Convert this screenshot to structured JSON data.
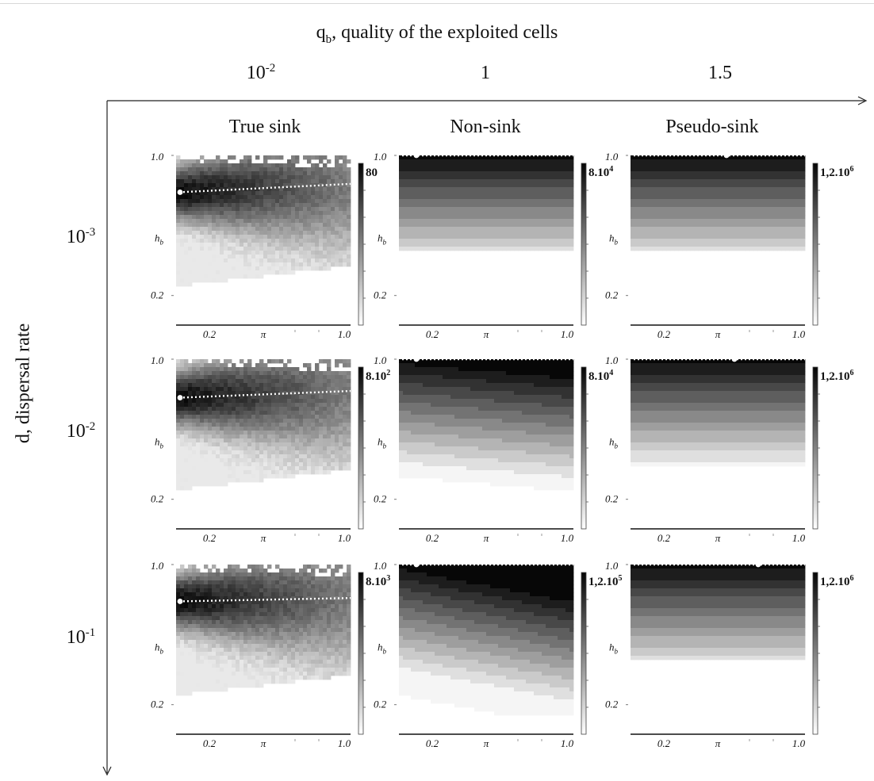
{
  "figure": {
    "title": "q",
    "title_sub": "b",
    "title_rest": ", quality of the exploited cells",
    "y_title": "d, dispersal rate",
    "columns": [
      {
        "q_base": "10",
        "q_sup": "-2",
        "type": "True sink"
      },
      {
        "q_base": "1",
        "q_sup": "",
        "type": "Non-sink"
      },
      {
        "q_base": "1.5",
        "q_sup": "",
        "type": "Pseudo-sink"
      }
    ],
    "rows": [
      {
        "d_base": "10",
        "d_sup": "-3"
      },
      {
        "d_base": "10",
        "d_sup": "-2"
      },
      {
        "d_base": "10",
        "d_sup": "-1"
      }
    ],
    "panel_axis": {
      "y_tick_top": "1.0",
      "y_tick_bottom": "0.2",
      "y_label": "h",
      "y_label_sub": "b",
      "x_tick_left": "0.2",
      "x_label": "π",
      "x_tick_right": "1.0"
    }
  },
  "chart_data": {
    "type": "heatmap",
    "title": "qb, quality of the exploited cells",
    "xlabel": "π",
    "ylabel": "hb",
    "x_range": [
      0.2,
      1.0
    ],
    "y_range": [
      0.2,
      1.0
    ],
    "grayscale": "darker = higher value",
    "marker": "white dot with dotted white line (optimum hb)",
    "panels": [
      {
        "row": "10-3",
        "col": "10-2",
        "kind": "True sink",
        "cbar_max": "80",
        "optimum_hb": [
          0.78,
          0.83
        ]
      },
      {
        "row": "10-3",
        "col": "1",
        "kind": "Non-sink",
        "cbar_max": "8.10^4",
        "optimum_hb": [
          1.0,
          1.0
        ]
      },
      {
        "row": "10-3",
        "col": "1.5",
        "kind": "Pseudo-sink",
        "cbar_max": "1,2.10^6",
        "optimum_hb": [
          1.0,
          1.0
        ]
      },
      {
        "row": "10-2",
        "col": "10-2",
        "kind": "True sink",
        "cbar_max": "8.10^2",
        "optimum_hb": [
          0.77,
          0.81
        ]
      },
      {
        "row": "10-2",
        "col": "1",
        "kind": "Non-sink",
        "cbar_max": "8.10^4",
        "optimum_hb": [
          1.0,
          1.0
        ]
      },
      {
        "row": "10-2",
        "col": "1.5",
        "kind": "Pseudo-sink",
        "cbar_max": "1,2.10^6",
        "optimum_hb": [
          1.0,
          1.0
        ]
      },
      {
        "row": "10-1",
        "col": "10-2",
        "kind": "True sink",
        "cbar_max": "8.10^3",
        "optimum_hb": [
          0.78,
          0.8
        ]
      },
      {
        "row": "10-1",
        "col": "1",
        "kind": "Non-sink",
        "cbar_max": "1,2.10^5",
        "optimum_hb": [
          1.0,
          1.0
        ]
      },
      {
        "row": "10-1",
        "col": "1.5",
        "kind": "Pseudo-sink",
        "cbar_max": "1,2.10^6",
        "optimum_hb": [
          1.0,
          1.0
        ]
      }
    ]
  }
}
